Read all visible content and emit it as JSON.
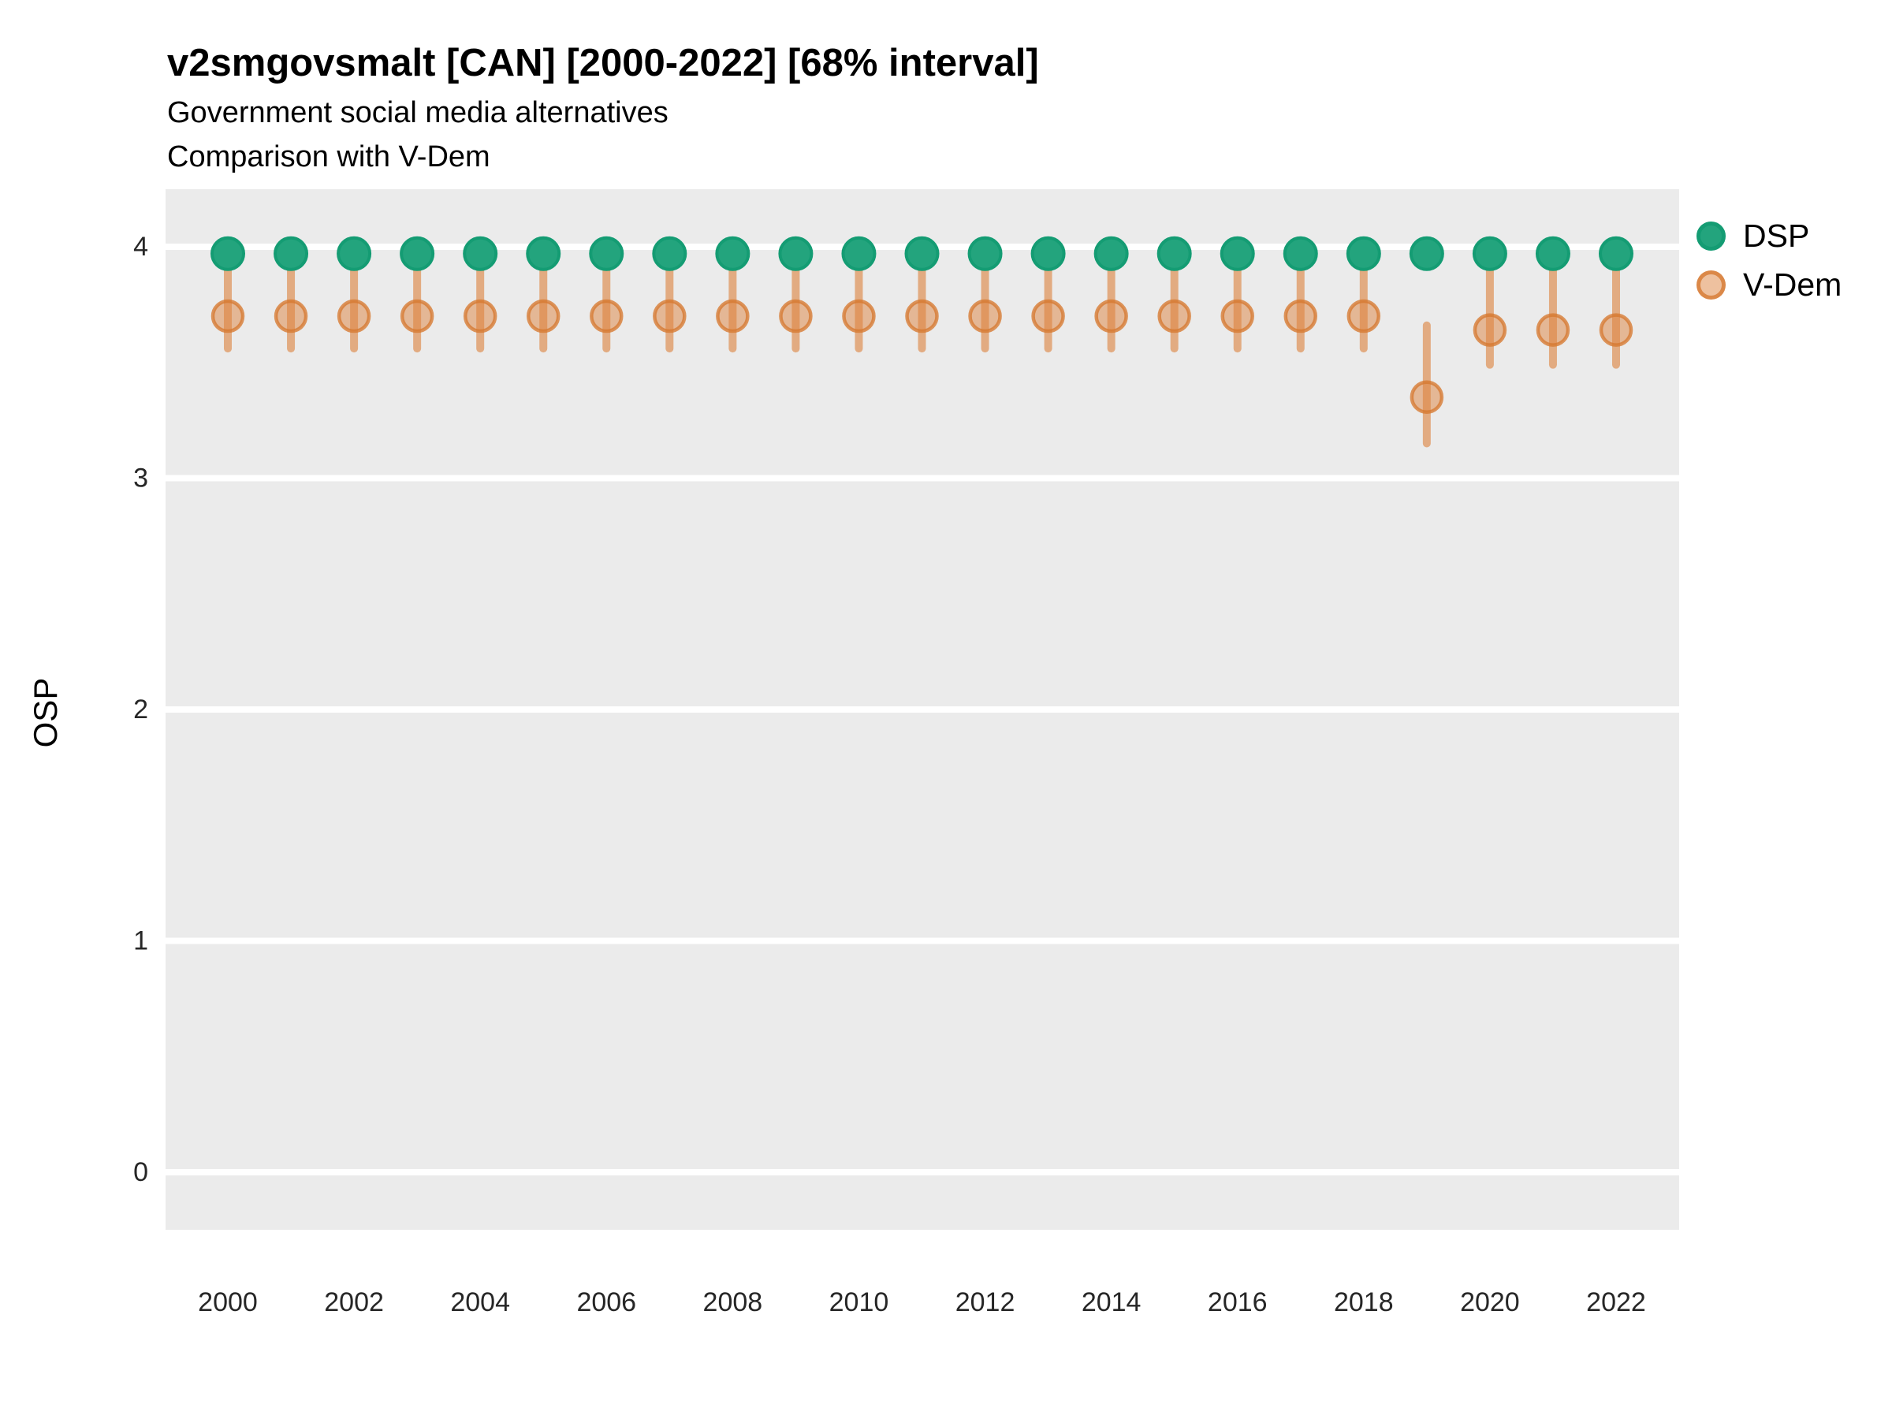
{
  "title": "v2smgovsmalt [CAN] [2000-2022] [68% interval]",
  "subtitle1": "Government social media alternatives",
  "subtitle2": "Comparison with V-Dem",
  "y_axis_title": "OSP",
  "legend": {
    "items": [
      {
        "label": "DSP"
      },
      {
        "label": "V-Dem"
      }
    ]
  },
  "colors": {
    "panel_background": "#ebebeb",
    "gridline": "#ffffff",
    "dsp_fill": "#23a47d",
    "dsp_stroke": "#149c73",
    "vdem_bar": "rgba(221,132,64,0.62)",
    "vdem_fill": "rgba(221,132,64,0.50)",
    "vdem_stroke": "rgba(214,121,47,0.78)",
    "tick_label": "#262626"
  },
  "chart_data": {
    "type": "scatter",
    "x": [
      2000,
      2001,
      2002,
      2003,
      2004,
      2005,
      2006,
      2007,
      2008,
      2009,
      2010,
      2011,
      2012,
      2013,
      2014,
      2015,
      2016,
      2017,
      2018,
      2019,
      2020,
      2021,
      2022
    ],
    "series": [
      {
        "name": "DSP",
        "values": [
          3.97,
          3.97,
          3.97,
          3.97,
          3.97,
          3.97,
          3.97,
          3.97,
          3.97,
          3.97,
          3.97,
          3.97,
          3.97,
          3.97,
          3.97,
          3.97,
          3.97,
          3.97,
          3.97,
          3.97,
          3.97,
          3.97,
          3.97
        ]
      },
      {
        "name": "V-Dem",
        "values": [
          3.7,
          3.7,
          3.7,
          3.7,
          3.7,
          3.7,
          3.7,
          3.7,
          3.7,
          3.7,
          3.7,
          3.7,
          3.7,
          3.7,
          3.7,
          3.7,
          3.7,
          3.7,
          3.7,
          3.35,
          3.64,
          3.64,
          3.64
        ],
        "lower": [
          3.56,
          3.56,
          3.56,
          3.56,
          3.56,
          3.56,
          3.56,
          3.56,
          3.56,
          3.56,
          3.56,
          3.56,
          3.56,
          3.56,
          3.56,
          3.56,
          3.56,
          3.56,
          3.56,
          3.15,
          3.49,
          3.49,
          3.49
        ],
        "upper": [
          3.95,
          3.95,
          3.95,
          3.95,
          3.95,
          3.95,
          3.95,
          3.95,
          3.95,
          3.95,
          3.95,
          3.95,
          3.95,
          3.95,
          3.95,
          3.95,
          3.95,
          3.95,
          3.95,
          3.66,
          3.95,
          3.95,
          3.95
        ],
        "interval": "68%"
      }
    ],
    "xticks": [
      2000,
      2002,
      2004,
      2006,
      2008,
      2010,
      2012,
      2014,
      2016,
      2018,
      2020,
      2022
    ],
    "yticks": [
      0,
      1,
      2,
      3,
      4
    ],
    "ylim": [
      -0.25,
      4.25
    ],
    "xlabel": "",
    "ylabel": "OSP",
    "grid": "major-horizontal",
    "legend_position": "top-right"
  }
}
